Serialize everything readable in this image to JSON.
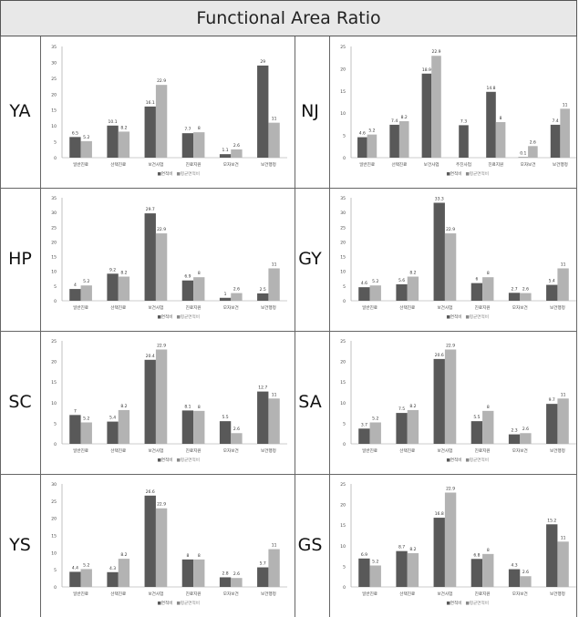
{
  "figure": {
    "title": "Functional Area Ratio",
    "legend": [
      "■면적비",
      "■평균면적비"
    ],
    "colors": {
      "ratio": "#595959",
      "avg": "#b3b3b3",
      "header_bg": "#e8e8e8",
      "border": "#555555"
    }
  },
  "chart_data": [
    {
      "type": "bar",
      "label": "YA",
      "categories": [
        "일반진료",
        "선택진료",
        "보건사업",
        "진료지원",
        "모자보건",
        "보건행정"
      ],
      "series": [
        {
          "name": "면적비",
          "values": [
            6.5,
            10.1,
            16.1,
            7.7,
            1.1,
            29
          ]
        },
        {
          "name": "평균면적비",
          "values": [
            5.2,
            8.2,
            22.9,
            8,
            2.6,
            11
          ]
        }
      ],
      "ylim": [
        0,
        35
      ],
      "yticks": [
        0,
        5,
        10,
        15,
        20,
        25,
        30,
        35
      ]
    },
    {
      "type": "bar",
      "label": "NJ",
      "categories": [
        "일반진료",
        "선택진료",
        "보건사업",
        "주진사업",
        "진료지원",
        "모자보건",
        "보건행정"
      ],
      "series": [
        {
          "name": "면적비",
          "values": [
            4.6,
            7.4,
            18.9,
            7.3,
            14.8,
            0.1,
            7.4
          ]
        },
        {
          "name": "평균면적비",
          "values": [
            5.2,
            8.2,
            22.9,
            null,
            8,
            2.6,
            11
          ]
        }
      ],
      "ylim": [
        0,
        25
      ],
      "yticks": [
        0,
        5,
        10,
        15,
        20,
        25
      ]
    },
    {
      "type": "bar",
      "label": "HP",
      "categories": [
        "일반진료",
        "선택진료",
        "보건사업",
        "진료지원",
        "모자보건",
        "보건행정"
      ],
      "series": [
        {
          "name": "면적비",
          "values": [
            4,
            9.2,
            29.7,
            6.9,
            1,
            2.5
          ]
        },
        {
          "name": "평균면적비",
          "values": [
            5.2,
            8.2,
            22.9,
            8,
            2.6,
            11
          ]
        }
      ],
      "ylim": [
        0,
        35
      ],
      "yticks": [
        0,
        5,
        10,
        15,
        20,
        25,
        30,
        35
      ]
    },
    {
      "type": "bar",
      "label": "GY",
      "categories": [
        "일반진료",
        "선택진료",
        "보건사업",
        "진료지원",
        "모자보건",
        "보건행정"
      ],
      "series": [
        {
          "name": "면적비",
          "values": [
            4.6,
            5.6,
            33.3,
            6,
            2.7,
            5.4
          ]
        },
        {
          "name": "평균면적비",
          "values": [
            5.2,
            8.2,
            22.9,
            8,
            2.6,
            11
          ]
        }
      ],
      "ylim": [
        0,
        35
      ],
      "yticks": [
        0,
        5,
        10,
        15,
        20,
        25,
        30,
        35
      ]
    },
    {
      "type": "bar",
      "label": "SC",
      "categories": [
        "일반진료",
        "선택진료",
        "보건사업",
        "진료지원",
        "모자보건",
        "보건행정"
      ],
      "series": [
        {
          "name": "면적비",
          "values": [
            7,
            5.4,
            20.4,
            8.1,
            5.5,
            12.7
          ]
        },
        {
          "name": "평균면적비",
          "values": [
            5.2,
            8.2,
            22.9,
            8,
            2.6,
            11
          ]
        }
      ],
      "ylim": [
        0,
        25
      ],
      "yticks": [
        0,
        5,
        10,
        15,
        20,
        25
      ]
    },
    {
      "type": "bar",
      "label": "SA",
      "categories": [
        "일반진료",
        "선택진료",
        "보건사업",
        "진료지원",
        "모자보건",
        "보건행정"
      ],
      "series": [
        {
          "name": "면적비",
          "values": [
            3.7,
            7.5,
            20.6,
            5.5,
            2.3,
            9.7
          ]
        },
        {
          "name": "평균면적비",
          "values": [
            5.2,
            8.2,
            22.9,
            8,
            2.6,
            11
          ]
        }
      ],
      "ylim": [
        0,
        25
      ],
      "yticks": [
        0,
        5,
        10,
        15,
        20,
        25
      ]
    },
    {
      "type": "bar",
      "label": "YS",
      "categories": [
        "일반진료",
        "선택진료",
        "보건사업",
        "진료지원",
        "모자보건",
        "보건행정"
      ],
      "series": [
        {
          "name": "면적비",
          "values": [
            4.4,
            4.3,
            26.6,
            8,
            2.8,
            5.7
          ]
        },
        {
          "name": "평균면적비",
          "values": [
            5.2,
            8.2,
            22.9,
            8,
            2.6,
            11
          ]
        }
      ],
      "ylim": [
        0,
        30
      ],
      "yticks": [
        0,
        5,
        10,
        15,
        20,
        25,
        30
      ]
    },
    {
      "type": "bar",
      "label": "GS",
      "categories": [
        "일반진료",
        "선택진료",
        "보건사업",
        "진료지원",
        "모자보건",
        "보건행정"
      ],
      "series": [
        {
          "name": "면적비",
          "values": [
            6.9,
            8.7,
            16.8,
            6.8,
            4.3,
            15.2
          ]
        },
        {
          "name": "평균면적비",
          "values": [
            5.2,
            8.2,
            22.9,
            8,
            2.6,
            11
          ]
        }
      ],
      "ylim": [
        0,
        25
      ],
      "yticks": [
        0,
        5,
        10,
        15,
        20,
        25
      ]
    }
  ]
}
